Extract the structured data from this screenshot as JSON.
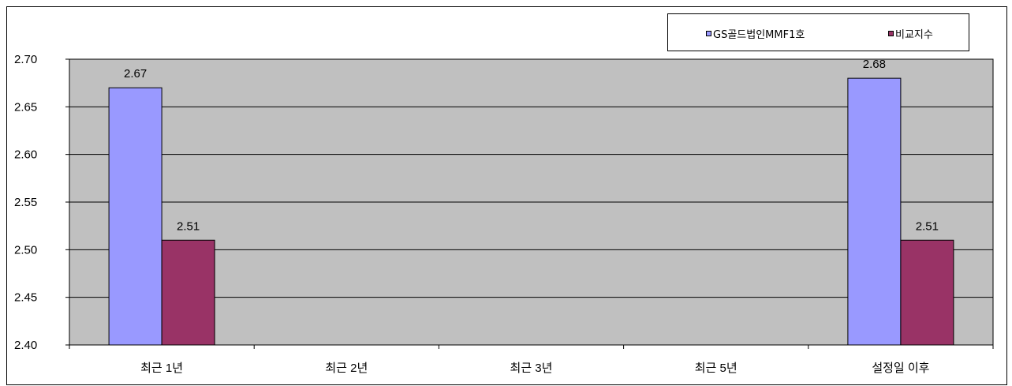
{
  "chart_data": {
    "type": "bar",
    "categories": [
      "최근 1년",
      "최근 2년",
      "최근 3년",
      "최근 5년",
      "설정일 이후"
    ],
    "series": [
      {
        "name": "GS골드법인MMF1호",
        "color": "#9999ff",
        "values": [
          2.67,
          null,
          null,
          null,
          2.68
        ]
      },
      {
        "name": "비교지수",
        "color": "#993366",
        "values": [
          2.51,
          null,
          null,
          null,
          2.51
        ]
      }
    ],
    "ylim": [
      2.4,
      2.7
    ],
    "yticks": [
      "2.40",
      "2.45",
      "2.50",
      "2.55",
      "2.60",
      "2.65",
      "2.70"
    ],
    "data_labels": [
      [
        "2.67",
        null,
        null,
        null,
        "2.68"
      ],
      [
        "2.51",
        null,
        null,
        null,
        "2.51"
      ]
    ],
    "grid": true,
    "plot_background": "#c0c0c0",
    "legend_position": "top-right"
  }
}
